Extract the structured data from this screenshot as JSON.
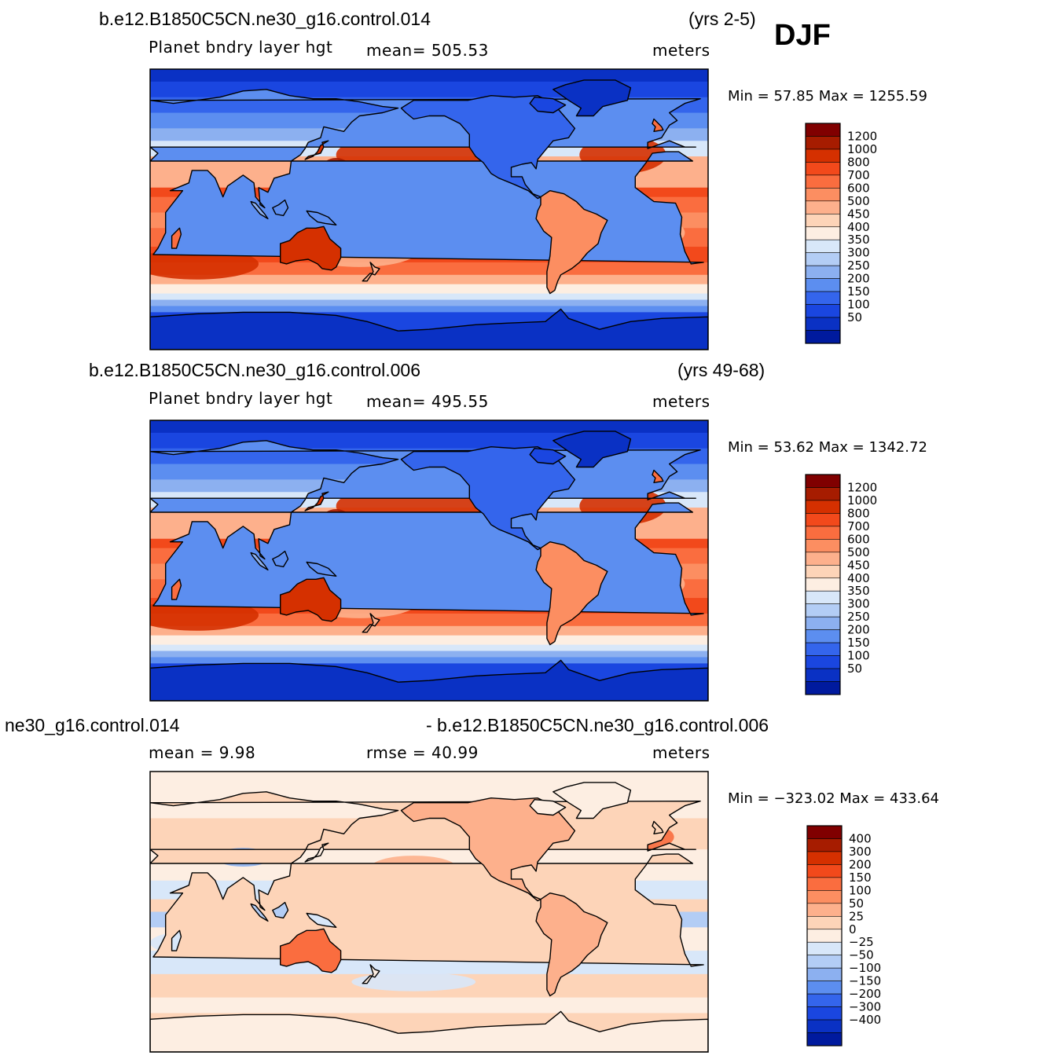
{
  "season": "DJF",
  "chart_data": [
    {
      "type": "heatmap",
      "title": "b.e12.B1850C5CN.ne30_g16.control.014",
      "period": "(yrs 2-5)",
      "variable": "Planet  bndry  layer  hgt",
      "mean_label": "mean=  505.53",
      "units": "meters",
      "minmax_label": "Min  =    57.85  Max  =  1255.59",
      "min": 57.85,
      "max": 1255.59,
      "mean": 505.53,
      "colorbar": {
        "labels": [
          "1200",
          "1000",
          "800",
          "700",
          "600",
          "500",
          "450",
          "400",
          "350",
          "300",
          "250",
          "200",
          "150",
          "100",
          "50"
        ],
        "colors": [
          "#800000",
          "#a61c00",
          "#d53000",
          "#f2491b",
          "#fa6d3f",
          "#fc8e61",
          "#fdb08c",
          "#fdd4b8",
          "#fdeee2",
          "#d8e7f9",
          "#b3cdf5",
          "#8cb0f0",
          "#5c8ef0",
          "#3465ec",
          "#1a46e0",
          "#0a31c4",
          "#001a9e"
        ]
      }
    },
    {
      "type": "heatmap",
      "title": "b.e12.B1850C5CN.ne30_g16.control.006",
      "period": "(yrs 49-68)",
      "variable": "Planet  bndry  layer  hgt",
      "mean_label": "mean=  495.55",
      "units": "meters",
      "minmax_label": "Min  =    53.62  Max  =  1342.72",
      "min": 53.62,
      "max": 1342.72,
      "mean": 495.55,
      "colorbar": {
        "labels": [
          "1200",
          "1000",
          "800",
          "700",
          "600",
          "500",
          "450",
          "400",
          "350",
          "300",
          "250",
          "200",
          "150",
          "100",
          "50"
        ],
        "colors": [
          "#800000",
          "#a61c00",
          "#d53000",
          "#f2491b",
          "#fa6d3f",
          "#fc8e61",
          "#fdb08c",
          "#fdd4b8",
          "#fdeee2",
          "#d8e7f9",
          "#b3cdf5",
          "#8cb0f0",
          "#5c8ef0",
          "#3465ec",
          "#1a46e0",
          "#0a31c4",
          "#001a9e"
        ]
      }
    },
    {
      "type": "heatmap",
      "title": "ne30_g16.control.014",
      "title_right": "- b.e12.B1850C5CN.ne30_g16.control.006",
      "mean_label": "mean  =      9.98",
      "rmse_label": "rmse  =     40.99",
      "units": "meters",
      "minmax_label": "Min  =  −323.02  Max  =  433.64",
      "min": -323.02,
      "max": 433.64,
      "mean": 9.98,
      "rmse": 40.99,
      "colorbar": {
        "labels": [
          "400",
          "300",
          "200",
          "150",
          "100",
          "50",
          "25",
          "0",
          "−25",
          "−50",
          "−100",
          "−150",
          "−200",
          "−300",
          "−400"
        ],
        "colors": [
          "#800000",
          "#a61c00",
          "#d53000",
          "#f2491b",
          "#fa6d3f",
          "#fc8e61",
          "#fdb08c",
          "#fdd4b8",
          "#fdeee2",
          "#d8e7f9",
          "#b3cdf5",
          "#8cb0f0",
          "#5c8ef0",
          "#3465ec",
          "#1a46e0",
          "#0a31c4",
          "#001a9e"
        ]
      }
    }
  ]
}
